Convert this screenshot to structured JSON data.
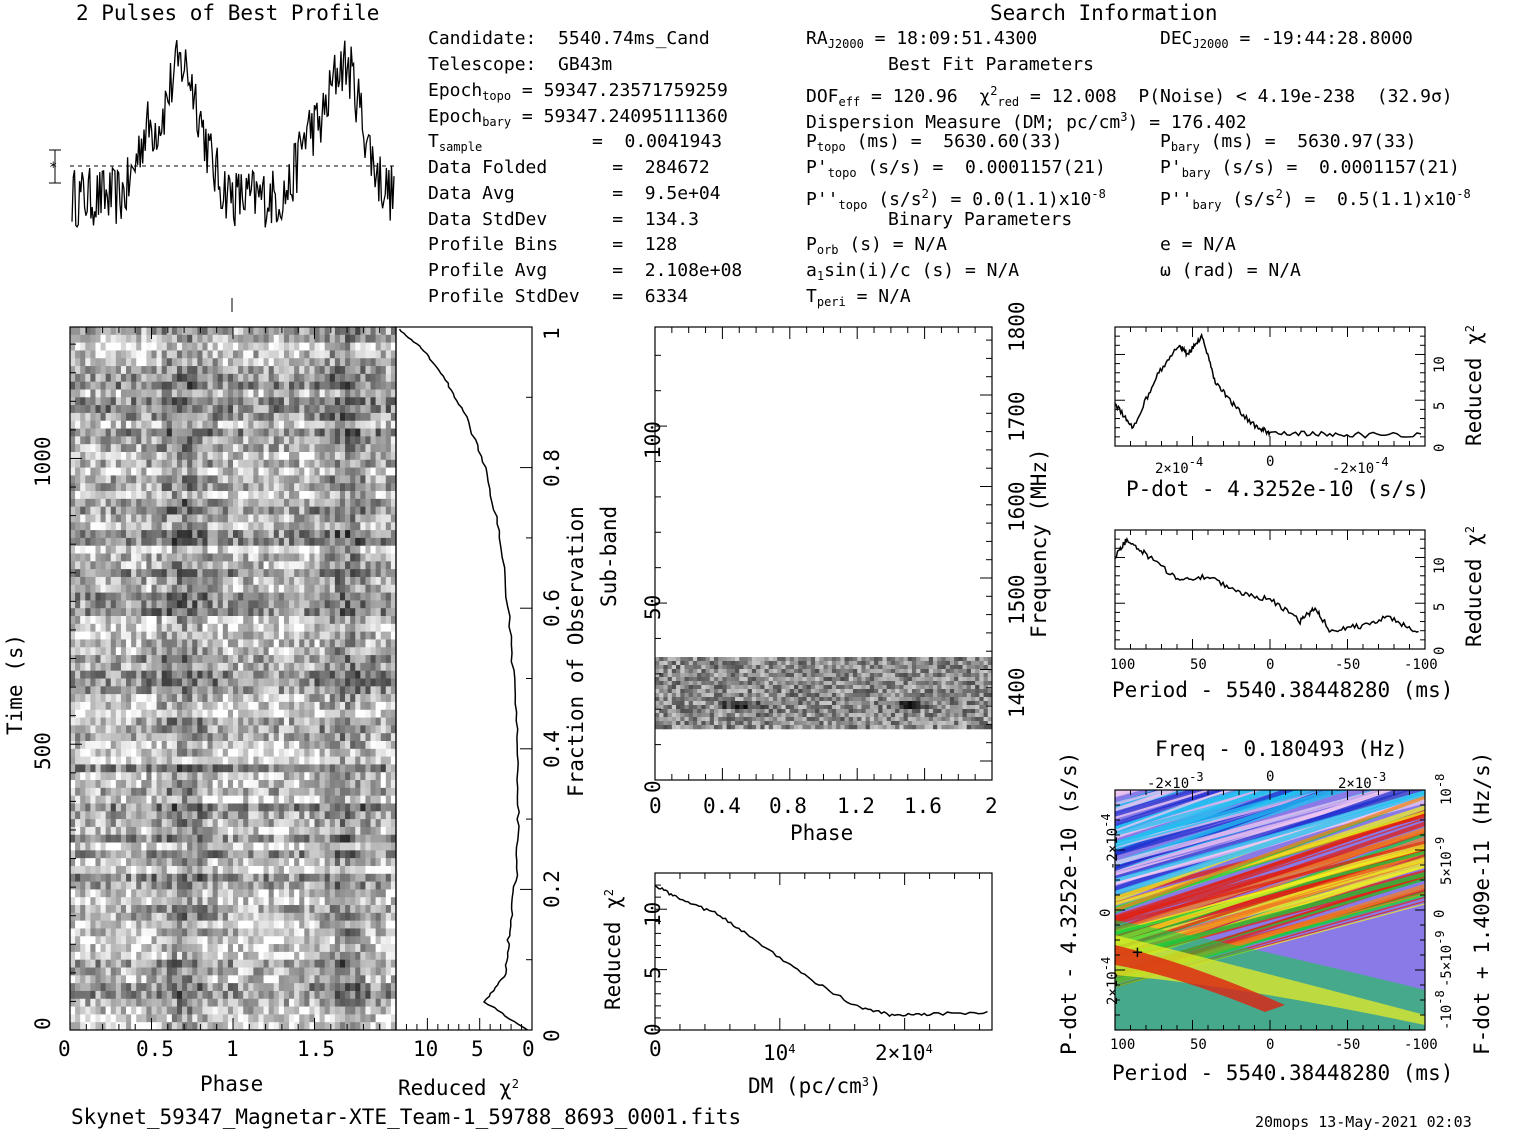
{
  "titles": {
    "profile": "2 Pulses of Best Profile",
    "search": "Search Information",
    "best_fit": "Best Fit Parameters",
    "binary": "Binary Parameters",
    "filename": "Skynet_59347_Magnetar-XTE_Team-1_59788_8693_0001.fits",
    "footer": "20mops 13-May-2021 02:03"
  },
  "info_left": {
    "candidate": "Candidate:  5540.74ms_Cand",
    "telescope": "Telescope:  GB43m",
    "epoch_topo_label": "Epoch",
    "epoch_topo_sub": "topo",
    "epoch_topo_val": " = 59347.23571759259",
    "epoch_bary_label": "Epoch",
    "epoch_bary_sub": "bary",
    "epoch_bary_val": " = 59347.24095111360",
    "tsample_label": "T",
    "tsample_sub": "sample",
    "tsample_val": "=  0.0041943",
    "data_folded": "Data Folded      =  284672",
    "data_avg": "Data Avg         =  9.5e+04",
    "data_stddev": "Data StdDev      =  134.3",
    "profile_bins": "Profile Bins     =  128",
    "profile_avg": "Profile Avg      =  2.108e+08",
    "profile_stddev": "Profile StdDev   =  6334"
  },
  "info_mid": {
    "ra_label": "RA",
    "ra_sub": "J2000",
    "ra_val": " = 18:09:51.4300",
    "dof_text": "DOF",
    "dof_sub": "eff",
    "dof_val": " = 120.96  χ",
    "chi_sub": "red",
    "chi_val": " = 12.008  P(Noise) < 4.19e-238  (32.9σ)",
    "dm": "Dispersion Measure (DM; pc/cm",
    "dm_val": ") = 176.402",
    "ptopo_label": "P",
    "ptopo_sub": "topo",
    "ptopo_val": " (ms) =  5630.60(33)",
    "pdtopo_label": "P'",
    "pdtopo_sub": "topo",
    "pdtopo_val": " (s/s) =  0.0001157(21)",
    "pddtopo_label": "P''",
    "pddtopo_sub": "topo",
    "pddtopo_val": " (s/s",
    "pddtopo_val2": ") = 0.0(1.1)x10",
    "porb": "P",
    "porb_sub": "orb",
    "porb_val": " (s) = N/A",
    "a1": "a",
    "a1_sub": "1",
    "a1_val": "sin(i)/c (s) = N/A",
    "tperi": "T",
    "tperi_sub": "peri",
    "tperi_val": " = N/A"
  },
  "info_right": {
    "dec_label": "DEC",
    "dec_sub": "J2000",
    "dec_val": " = -19:44:28.8000",
    "pbary_label": "P",
    "pbary_sub": "bary",
    "pbary_val": " (ms) =  5630.97(33)",
    "pdbary_label": "P'",
    "pdbary_sub": "bary",
    "pdbary_val": " (s/s) =  0.0001157(21)",
    "pddbary_label": "P''",
    "pddbary_sub": "bary",
    "pddbary_val": " (s/s",
    "pddbary_val2": ") =  0.5(1.1)x10",
    "e": "e = N/A",
    "omega": "ω (rad) = N/A"
  },
  "chart_data": [
    {
      "type": "line",
      "title": "2 Pulses of Best Profile",
      "x": "phase 0-2",
      "description_values": "two pulses peaking near phase 0.65 and 1.65"
    },
    {
      "type": "heatmap",
      "xlabel": "Phase",
      "ylabel": "Time (s)",
      "x_ticks": [
        "0",
        "0.5",
        "1",
        "1.5"
      ],
      "y_ticks": [
        "0",
        "500",
        "1000"
      ],
      "xlim": [
        0,
        2
      ],
      "ylim": [
        0,
        1230
      ]
    },
    {
      "type": "line",
      "xlabel": "Reduced χ",
      "ylabel": "Fraction of Observation",
      "x_ticks": [
        "10",
        "5",
        "0"
      ],
      "y_ticks": [
        "0",
        "0.2",
        "0.4",
        "0.6",
        "0.8",
        "1"
      ],
      "series": [
        {
          "x": [
            0.5,
            4.5,
            2.5,
            2.2,
            1.5,
            1.3,
            1.5,
            2.0,
            3.0,
            4.5,
            6.5,
            8.5,
            10.5,
            13.0
          ],
          "y": [
            0.0,
            0.04,
            0.08,
            0.14,
            0.22,
            0.32,
            0.44,
            0.56,
            0.7,
            0.8,
            0.88,
            0.93,
            0.97,
            1.0
          ]
        }
      ],
      "xlim": [
        13,
        0
      ],
      "ylim": [
        0,
        1
      ]
    },
    {
      "type": "heatmap",
      "xlabel": "Phase",
      "ylabel": "Sub-band",
      "y2label": "Frequency (MHz)",
      "x_ticks": [
        "0",
        "0.4",
        "0.8",
        "1.2",
        "1.6",
        "2"
      ],
      "y_ticks": [
        "0",
        "50",
        "100"
      ],
      "y2_ticks": [
        "1400",
        "1500",
        "1600",
        "1700",
        "1800"
      ],
      "xlim": [
        0,
        2
      ],
      "ylim": [
        0,
        128
      ]
    },
    {
      "type": "line",
      "xlabel": "DM (pc/cm",
      "ylabel": "Reduced χ",
      "x_ticks": [
        "0",
        "10",
        "2×10"
      ],
      "y_ticks": [
        "0",
        "5",
        "10"
      ],
      "series": [
        {
          "x": [
            0,
            2000,
            5000,
            8000,
            12000,
            16000,
            19000,
            22000,
            27000
          ],
          "y": [
            12.0,
            10.8,
            9.6,
            7.5,
            4.5,
            2.0,
            1.2,
            1.3,
            1.5
          ]
        }
      ],
      "xlim": [
        0,
        27000
      ],
      "ylim": [
        0,
        13
      ]
    },
    {
      "type": "line",
      "xlabel": "P-dot - 4.3252e-10 (s/s)",
      "ylabel": "Reduced χ",
      "x_ticks": [
        "2×10",
        "0",
        "-2×10"
      ],
      "y_ticks": [
        "0",
        "5",
        "10"
      ],
      "series": [
        {
          "x": [
            3.4,
            3.0,
            2.5,
            2.0,
            1.8,
            1.5,
            1.2,
            0.8,
            0.3,
            0.0,
            -1.0,
            -2.0,
            -3.4
          ],
          "y": [
            4.5,
            2.0,
            7.5,
            11.0,
            10.0,
            12.0,
            7.0,
            4.5,
            2.0,
            1.5,
            1.3,
            1.2,
            1.3
          ]
        }
      ],
      "xlim": [
        3.4,
        -3.4
      ],
      "ylim": [
        0,
        13
      ]
    },
    {
      "type": "line",
      "xlabel": "Period - 5540.38448280 (ms)",
      "ylabel": "Reduced χ",
      "x_ticks": [
        "100",
        "50",
        "0",
        "-50",
        "-100"
      ],
      "y_ticks": [
        "0",
        "5",
        "10"
      ],
      "series": [
        {
          "x": [
            103,
            95,
            80,
            60,
            40,
            20,
            0,
            -20,
            -30,
            -40,
            -60,
            -80,
            -100
          ],
          "y": [
            10.0,
            12.0,
            10.0,
            7.5,
            8.0,
            6.0,
            5.5,
            3.0,
            4.5,
            2.0,
            2.5,
            3.5,
            1.5
          ]
        }
      ],
      "xlim": [
        103,
        -103
      ],
      "ylim": [
        0,
        13
      ]
    },
    {
      "type": "heatmap",
      "title": "Freq - 0.180493 (Hz)",
      "xlabel": "Period - 5540.38448280 (ms)",
      "ylabel": "P-dot - 4.3252e-10 (s/s)",
      "y2label": "F-dot + 1.409e-11 (Hz/s)",
      "x_ticks": [
        "100",
        "50",
        "0",
        "-50",
        "-100"
      ],
      "x2_ticks": [
        "-2×10",
        "0",
        "2×10"
      ],
      "y_ticks": [
        "-2×10",
        "0",
        "2×10"
      ],
      "y2_ticks": [
        "10",
        "5×10",
        "0",
        "-5×10",
        "-10"
      ],
      "colors": [
        "#f0c8f0",
        "#2030d0",
        "#20c0f0",
        "#10d040",
        "#f0f020",
        "#f08020",
        "#e02010"
      ]
    }
  ]
}
